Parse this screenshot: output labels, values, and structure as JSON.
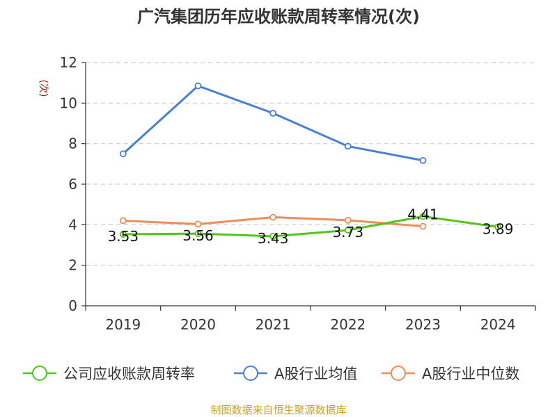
{
  "title": "广汽集团历年应收账款周转率情况(次)",
  "source": "制图数据来自恒生聚源数据库",
  "chart_data": {
    "type": "line",
    "title": "广汽集团历年应收账款周转率情况(次)",
    "ylabel": "(次)",
    "xlabel": "",
    "categories": [
      "2019",
      "2020",
      "2021",
      "2022",
      "2023",
      "2024"
    ],
    "ylim": [
      0,
      12
    ],
    "yticks": [
      0,
      2,
      4,
      6,
      8,
      10,
      12
    ],
    "grid": true,
    "legend_position": "bottom",
    "series": [
      {
        "name": "公司应收账款周转率",
        "color": "#52c41a",
        "values": [
          3.53,
          3.56,
          3.43,
          3.73,
          4.41,
          3.89
        ],
        "labels": [
          "3.53",
          "3.56",
          "3.43",
          "3.73",
          "4.41",
          "3.89"
        ]
      },
      {
        "name": "A股行业均值",
        "color": "#4a7fd6",
        "values": [
          7.5,
          10.85,
          9.5,
          7.87,
          7.17,
          null
        ]
      },
      {
        "name": "A股行业中位数",
        "color": "#f08c5a",
        "values": [
          4.2,
          4.03,
          4.37,
          4.22,
          3.92,
          null
        ]
      }
    ]
  }
}
